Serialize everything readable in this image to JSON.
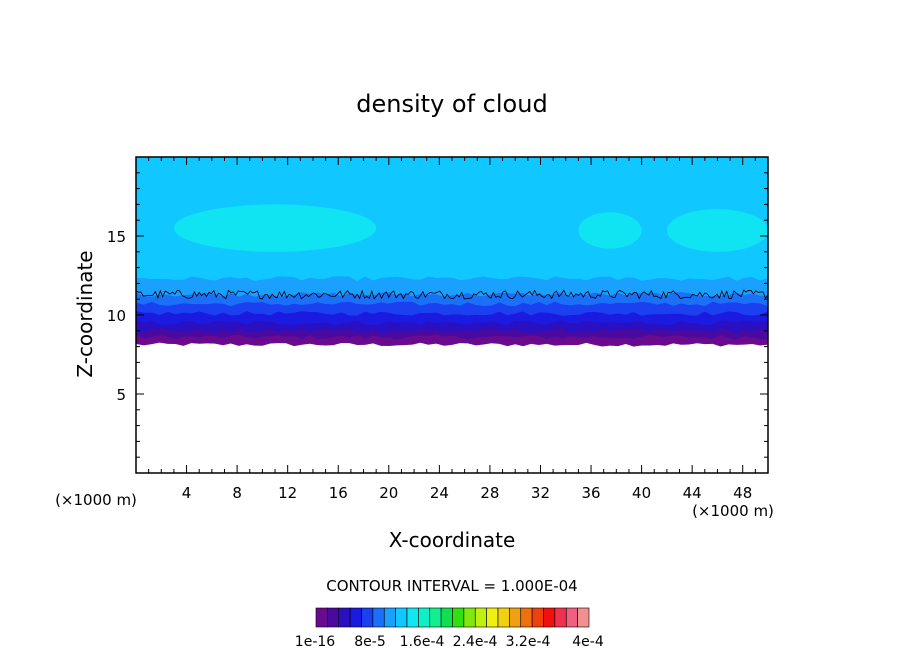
{
  "chart_data": {
    "type": "contour",
    "title": "density of cloud",
    "xlabel": "X-coordinate",
    "ylabel": "Z-coordinate",
    "x_unit": "(×1000 m)",
    "z_unit": "(×1000 m)",
    "xlim": [
      0,
      50
    ],
    "ylim": [
      0,
      20
    ],
    "x_ticks": [
      4,
      8,
      12,
      16,
      20,
      24,
      28,
      32,
      36,
      40,
      44,
      48
    ],
    "y_ticks": [
      5,
      10,
      15
    ],
    "contour_interval_text": "CONTOUR INTERVAL = 1.000E-04",
    "colorbar": {
      "colors": [
        "#6a0a8e",
        "#4a0aa0",
        "#2a10c0",
        "#1a1ae0",
        "#1a40f0",
        "#1a70f8",
        "#1aa0ff",
        "#10c8ff",
        "#10e8f0",
        "#10f0c8",
        "#10f090",
        "#10e050",
        "#30e010",
        "#80e810",
        "#c0f010",
        "#f0f010",
        "#f0d010",
        "#f0a010",
        "#f07010",
        "#f04010",
        "#f01010",
        "#f03050",
        "#f06080",
        "#f09090"
      ],
      "labels": [
        "1e-16",
        "8e-5",
        "1.6e-4",
        "2.4e-4",
        "3.2e-4",
        "4e-4"
      ]
    },
    "cloud": {
      "base_z": 8.2,
      "contour_line_z": 11.3,
      "top_z": 20,
      "layers": [
        {
          "z_from": 8.0,
          "z_to": 8.6,
          "color": "#6a0a8e"
        },
        {
          "z_from": 8.6,
          "z_to": 9.0,
          "color": "#4a0aa0"
        },
        {
          "z_from": 9.0,
          "z_to": 9.5,
          "color": "#2a10c0"
        },
        {
          "z_from": 9.5,
          "z_to": 10.1,
          "color": "#1a1ae0"
        },
        {
          "z_from": 10.1,
          "z_to": 10.7,
          "color": "#1a40f0"
        },
        {
          "z_from": 10.7,
          "z_to": 11.3,
          "color": "#1a70f8"
        },
        {
          "z_from": 11.3,
          "z_to": 12.3,
          "color": "#1aa0ff"
        },
        {
          "z_from": 12.3,
          "z_to": 20.0,
          "color": "#10c8ff"
        }
      ],
      "patches": [
        {
          "x_from": 3,
          "x_to": 19,
          "z_from": 14,
          "z_to": 17,
          "color": "#10e8f0"
        },
        {
          "x_from": 35,
          "x_to": 40,
          "z_from": 14.2,
          "z_to": 16.5,
          "color": "#10e8f0"
        },
        {
          "x_from": 42,
          "x_to": 50,
          "z_from": 14,
          "z_to": 16.7,
          "color": "#10e8f0"
        }
      ]
    }
  }
}
